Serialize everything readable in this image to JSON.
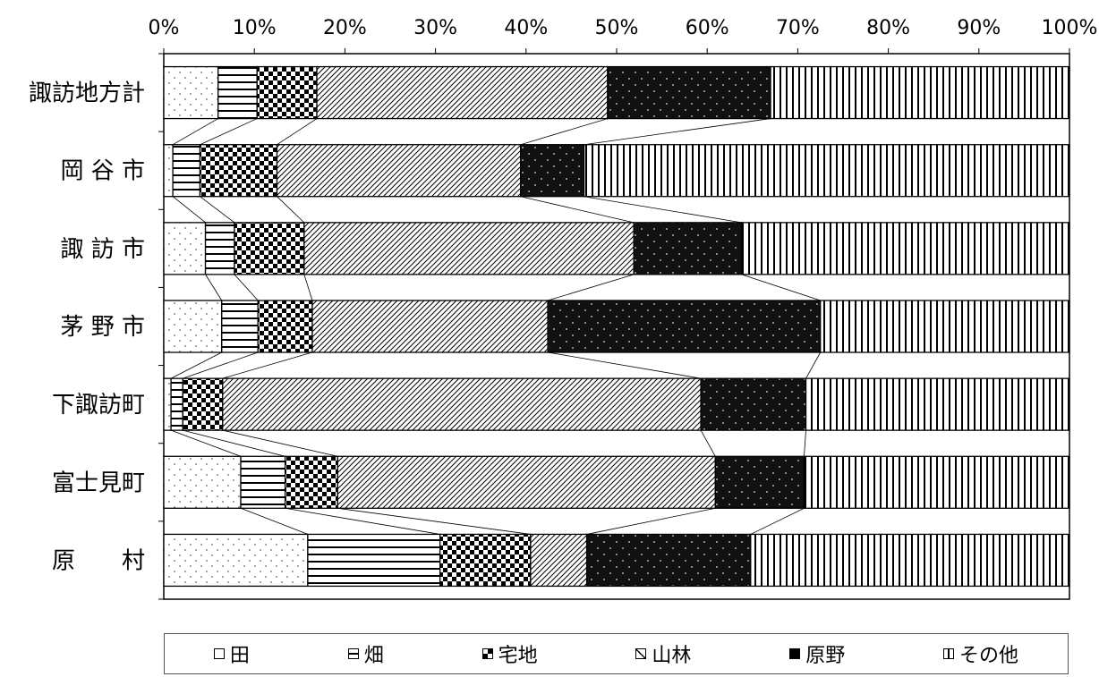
{
  "chart_data": {
    "type": "bar",
    "orientation": "horizontal",
    "stacked": "percent",
    "categories": [
      "諏訪地方計",
      "岡 谷 市",
      "諏 訪 市",
      "茅 野 市",
      "下諏訪町",
      "富士見町",
      "原　　村"
    ],
    "series": [
      {
        "name": "田",
        "pattern": "dots",
        "values": [
          6.0,
          1.0,
          4.6,
          6.4,
          0.8,
          8.5,
          15.9
        ]
      },
      {
        "name": "畑",
        "pattern": "hlines",
        "values": [
          4.3,
          3.0,
          3.2,
          4.0,
          1.3,
          4.9,
          14.6
        ]
      },
      {
        "name": "宅地",
        "pattern": "checker",
        "values": [
          6.6,
          8.5,
          7.7,
          6.0,
          4.4,
          5.8,
          10.0
        ]
      },
      {
        "name": "山林",
        "pattern": "diagonal",
        "values": [
          32.1,
          26.9,
          36.4,
          26.0,
          52.8,
          41.7,
          6.2
        ]
      },
      {
        "name": "原野",
        "pattern": "dark",
        "values": [
          18.0,
          7.0,
          11.9,
          30.1,
          11.6,
          9.8,
          18.1
        ]
      },
      {
        "name": "その他",
        "pattern": "vlines",
        "values": [
          33.0,
          53.6,
          36.2,
          27.5,
          29.1,
          29.3,
          35.2
        ]
      }
    ],
    "xticks": [
      "0%",
      "10%",
      "20%",
      "30%",
      "40%",
      "50%",
      "60%",
      "70%",
      "80%",
      "90%",
      "100%"
    ],
    "xlim": [
      0,
      100
    ],
    "legend_position": "bottom",
    "connector_lines": true
  },
  "legend": {
    "items": [
      {
        "label": "田",
        "pattern": "dots"
      },
      {
        "label": "畑",
        "pattern": "hlines"
      },
      {
        "label": "宅地",
        "pattern": "checker"
      },
      {
        "label": "山林",
        "pattern": "diagonal"
      },
      {
        "label": "原野",
        "pattern": "dark"
      },
      {
        "label": "その他",
        "pattern": "vlines"
      }
    ]
  }
}
